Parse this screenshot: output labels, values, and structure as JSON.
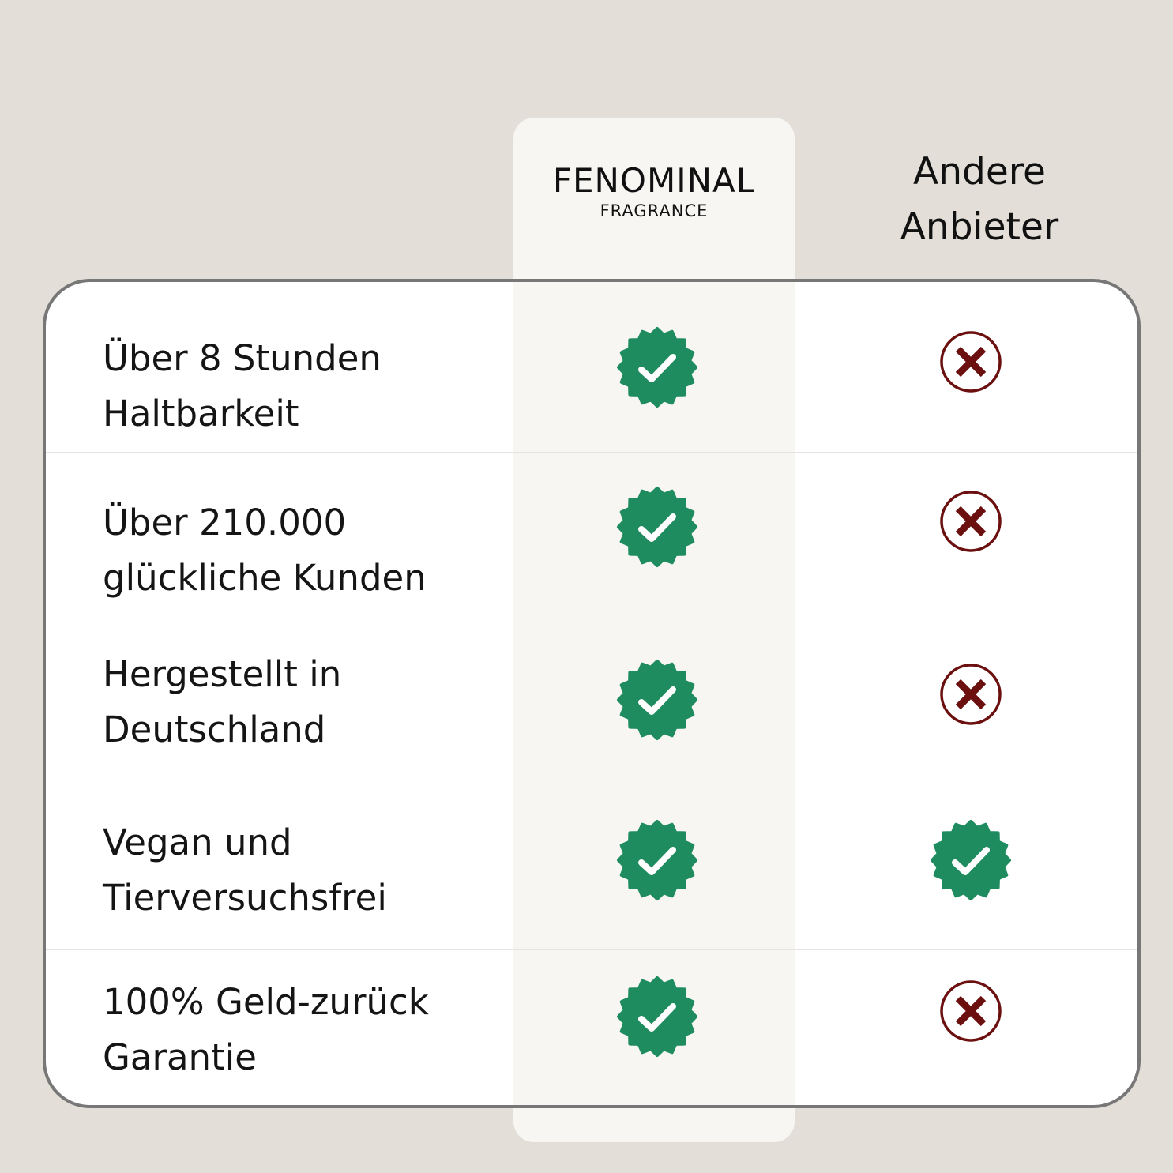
{
  "header": {
    "brand_name": "FENOMINAL",
    "brand_sub": "FRAGRANCE",
    "other_line1": "Andere",
    "other_line2": "Anbieter"
  },
  "colors": {
    "background": "#e3ded7",
    "highlight": "#f7f6f3",
    "check": "#1e8c5e",
    "cross": "#6b0f0f"
  },
  "rows": [
    {
      "line1": "Über 8 Stunden",
      "line2": "Haltbarkeit",
      "fenominal": "check-badge-icon",
      "others": "cross-circle-icon"
    },
    {
      "line1": "Über 210.000",
      "line2": "glückliche Kunden",
      "fenominal": "check-badge-icon",
      "others": "cross-circle-icon"
    },
    {
      "line1": "Hergestellt in",
      "line2": "Deutschland",
      "fenominal": "check-badge-icon",
      "others": "cross-circle-icon"
    },
    {
      "line1": "Vegan und",
      "line2": "Tierversuchsfrei",
      "fenominal": "check-badge-icon",
      "others": "check-badge-icon"
    },
    {
      "line1": "100% Geld-zurück",
      "line2": "Garantie",
      "fenominal": "check-badge-icon",
      "others": "cross-circle-icon"
    }
  ]
}
